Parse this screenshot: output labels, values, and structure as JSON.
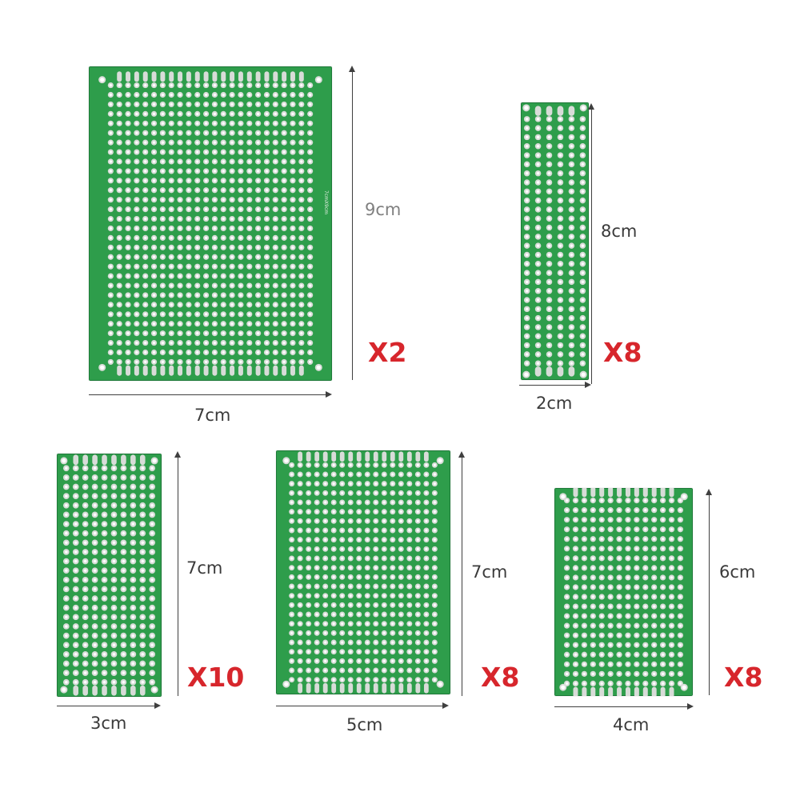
{
  "colors": {
    "board_green": "#2e9d4b",
    "board_edge": "#1d7a38",
    "pad_silver": "#d8dcd8",
    "hole": "#ffffff",
    "quantity_red": "#d7262c",
    "dimension_text": "#3a3a3a"
  },
  "boards": [
    {
      "id": "board-7x9",
      "width_label": "7cm",
      "height_label": "9cm",
      "quantity": "X2",
      "columns": 24,
      "rows": 30,
      "board_print": "7cmX9cm"
    },
    {
      "id": "board-2x8",
      "width_label": "2cm",
      "height_label": "8cm",
      "quantity": "X8",
      "columns": 6,
      "rows": 28
    },
    {
      "id": "board-3x7",
      "width_label": "3cm",
      "height_label": "7cm",
      "quantity": "X10",
      "columns": 10,
      "rows": 24
    },
    {
      "id": "board-5x7",
      "width_label": "5cm",
      "height_label": "7cm",
      "quantity": "X8",
      "columns": 18,
      "rows": 24
    },
    {
      "id": "board-4x6",
      "width_label": "4cm",
      "height_label": "6cm",
      "quantity": "X8",
      "columns": 14,
      "rows": 20
    }
  ]
}
